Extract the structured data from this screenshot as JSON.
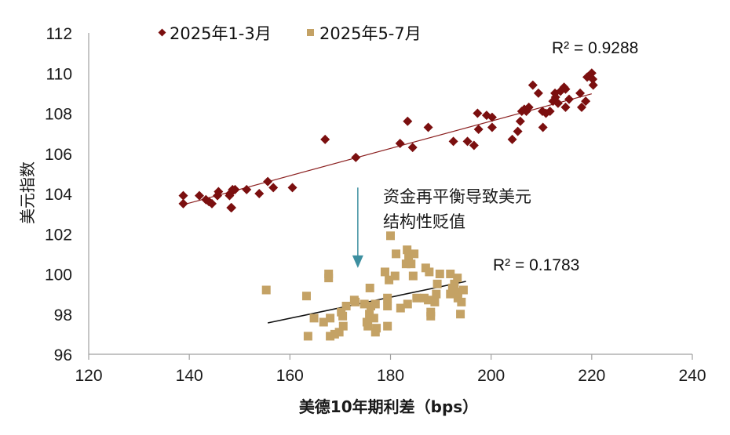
{
  "chart_data": {
    "type": "scatter",
    "title": "",
    "xlabel": "美德10年期利差（bps）",
    "ylabel": "美元指数",
    "xlim": [
      120,
      240
    ],
    "ylim": [
      96,
      112
    ],
    "xticks": [
      "120",
      "140",
      "160",
      "180",
      "200",
      "220",
      "240"
    ],
    "yticks": [
      "96",
      "98",
      "100",
      "102",
      "104",
      "106",
      "108",
      "110",
      "112"
    ],
    "grid": false,
    "legend_position": "top-left",
    "colors": {
      "series1": "#7b0f0f",
      "series2": "#c4a265",
      "trend1": "#8b2020",
      "trend2": "#111111",
      "arrow": "#3d8fa0"
    },
    "series": [
      {
        "name": "2025年1-3月",
        "marker": "diamond",
        "trendline": {
          "x": [
            139,
            220
          ],
          "y": [
            103.46,
            108.97
          ]
        },
        "r2_label": "R² = 0.9288",
        "points": [
          [
            138.8,
            103.9
          ],
          [
            138.8,
            103.5
          ],
          [
            142.0,
            103.9
          ],
          [
            143.3,
            103.7
          ],
          [
            143.9,
            103.6
          ],
          [
            144.5,
            103.5
          ],
          [
            145.8,
            104.1
          ],
          [
            145.6,
            103.9
          ],
          [
            148.0,
            103.9
          ],
          [
            148.1,
            104.0
          ],
          [
            148.6,
            104.2
          ],
          [
            149.1,
            104.2
          ],
          [
            148.4,
            103.3
          ],
          [
            148.3,
            103.3
          ],
          [
            151.4,
            104.2
          ],
          [
            153.9,
            104.0
          ],
          [
            155.6,
            104.6
          ],
          [
            156.7,
            104.3
          ],
          [
            160.5,
            104.3
          ],
          [
            167.0,
            106.7
          ],
          [
            173.1,
            105.8
          ],
          [
            181.9,
            106.5
          ],
          [
            183.4,
            107.6
          ],
          [
            184.4,
            106.3
          ],
          [
            187.5,
            107.3
          ],
          [
            192.5,
            106.6
          ],
          [
            195.3,
            106.6
          ],
          [
            196.6,
            106.4
          ],
          [
            197.3,
            108.0
          ],
          [
            197.5,
            107.2
          ],
          [
            199.1,
            107.9
          ],
          [
            200.2,
            107.8
          ],
          [
            200.2,
            107.3
          ],
          [
            204.2,
            106.7
          ],
          [
            205.3,
            107.1
          ],
          [
            205.8,
            107.6
          ],
          [
            206.1,
            108.1
          ],
          [
            206.6,
            108.2
          ],
          [
            207.0,
            108.1
          ],
          [
            207.5,
            108.3
          ],
          [
            208.3,
            109.4
          ],
          [
            209.4,
            109.0
          ],
          [
            210.2,
            108.1
          ],
          [
            210.3,
            107.3
          ],
          [
            210.9,
            108.0
          ],
          [
            211.7,
            108.1
          ],
          [
            212.3,
            108.6
          ],
          [
            212.8,
            108.8
          ],
          [
            212.7,
            109.0
          ],
          [
            213.3,
            108.5
          ],
          [
            213.8,
            109.1
          ],
          [
            214.5,
            109.3
          ],
          [
            214.8,
            109.2
          ],
          [
            215.5,
            108.7
          ],
          [
            214.8,
            108.3
          ],
          [
            217.7,
            109.0
          ],
          [
            218.0,
            108.3
          ],
          [
            218.8,
            108.6
          ],
          [
            219.1,
            109.8
          ],
          [
            220.0,
            110.0
          ],
          [
            220.2,
            109.7
          ],
          [
            220.3,
            109.4
          ]
        ]
      },
      {
        "name": "2025年5-7月",
        "marker": "square",
        "trendline": {
          "x": [
            155.6,
            195
          ],
          "y": [
            97.56,
            99.63
          ]
        },
        "r2_label": "R² = 0.1783",
        "points": [
          [
            155.3,
            99.2
          ],
          [
            163.3,
            98.9
          ],
          [
            167.7,
            100.0
          ],
          [
            167.7,
            99.8
          ],
          [
            163.6,
            96.9
          ],
          [
            164.8,
            97.8
          ],
          [
            166.7,
            97.6
          ],
          [
            168.0,
            97.8
          ],
          [
            168.0,
            96.9
          ],
          [
            168.9,
            97.0
          ],
          [
            169.8,
            97.1
          ],
          [
            170.2,
            98.1
          ],
          [
            170.5,
            97.9
          ],
          [
            170.6,
            97.4
          ],
          [
            171.2,
            98.4
          ],
          [
            172.8,
            98.7
          ],
          [
            173.0,
            98.6
          ],
          [
            174.8,
            98.5
          ],
          [
            175.9,
            99.3
          ],
          [
            175.8,
            98.0
          ],
          [
            176.7,
            97.8
          ],
          [
            177.2,
            97.3
          ],
          [
            175.3,
            97.6
          ],
          [
            175.5,
            97.4
          ],
          [
            177.0,
            97.1
          ],
          [
            179.4,
            97.4
          ],
          [
            176.1,
            98.4
          ],
          [
            177.0,
            98.5
          ],
          [
            179.4,
            98.8
          ],
          [
            179.4,
            98.4
          ],
          [
            178.9,
            100.1
          ],
          [
            179.7,
            99.7
          ],
          [
            180.9,
            99.9
          ],
          [
            180.0,
            101.9
          ],
          [
            181.1,
            101.0
          ],
          [
            183.3,
            101.2
          ],
          [
            183.6,
            100.8
          ],
          [
            183.1,
            100.5
          ],
          [
            184.7,
            101.0
          ],
          [
            184.1,
            100.5
          ],
          [
            184.5,
            99.9
          ],
          [
            182.0,
            98.3
          ],
          [
            183.4,
            98.5
          ],
          [
            185.2,
            98.8
          ],
          [
            186.7,
            98.8
          ],
          [
            187.5,
            98.7
          ],
          [
            188.8,
            98.6
          ],
          [
            188.0,
            98.1
          ],
          [
            188.0,
            97.9
          ],
          [
            189.1,
            99.0
          ],
          [
            189.8,
            100.0
          ],
          [
            187.0,
            100.3
          ],
          [
            187.7,
            100.1
          ],
          [
            191.9,
            100.0
          ],
          [
            189.3,
            99.5
          ],
          [
            192.7,
            99.5
          ],
          [
            193.3,
            99.8
          ],
          [
            192.3,
            99.3
          ],
          [
            193.4,
            99.1
          ],
          [
            194.5,
            99.2
          ],
          [
            191.9,
            99.0
          ],
          [
            193.4,
            98.8
          ],
          [
            194.1,
            98.6
          ],
          [
            193.9,
            98.0
          ]
        ]
      }
    ],
    "annotations": [
      {
        "text_lines": [
          "资金再平衡导致美元",
          "结构性贬值"
        ],
        "arrow_from": [
          173.5,
          104.3
        ],
        "arrow_to": [
          173.5,
          100.3
        ]
      }
    ]
  }
}
